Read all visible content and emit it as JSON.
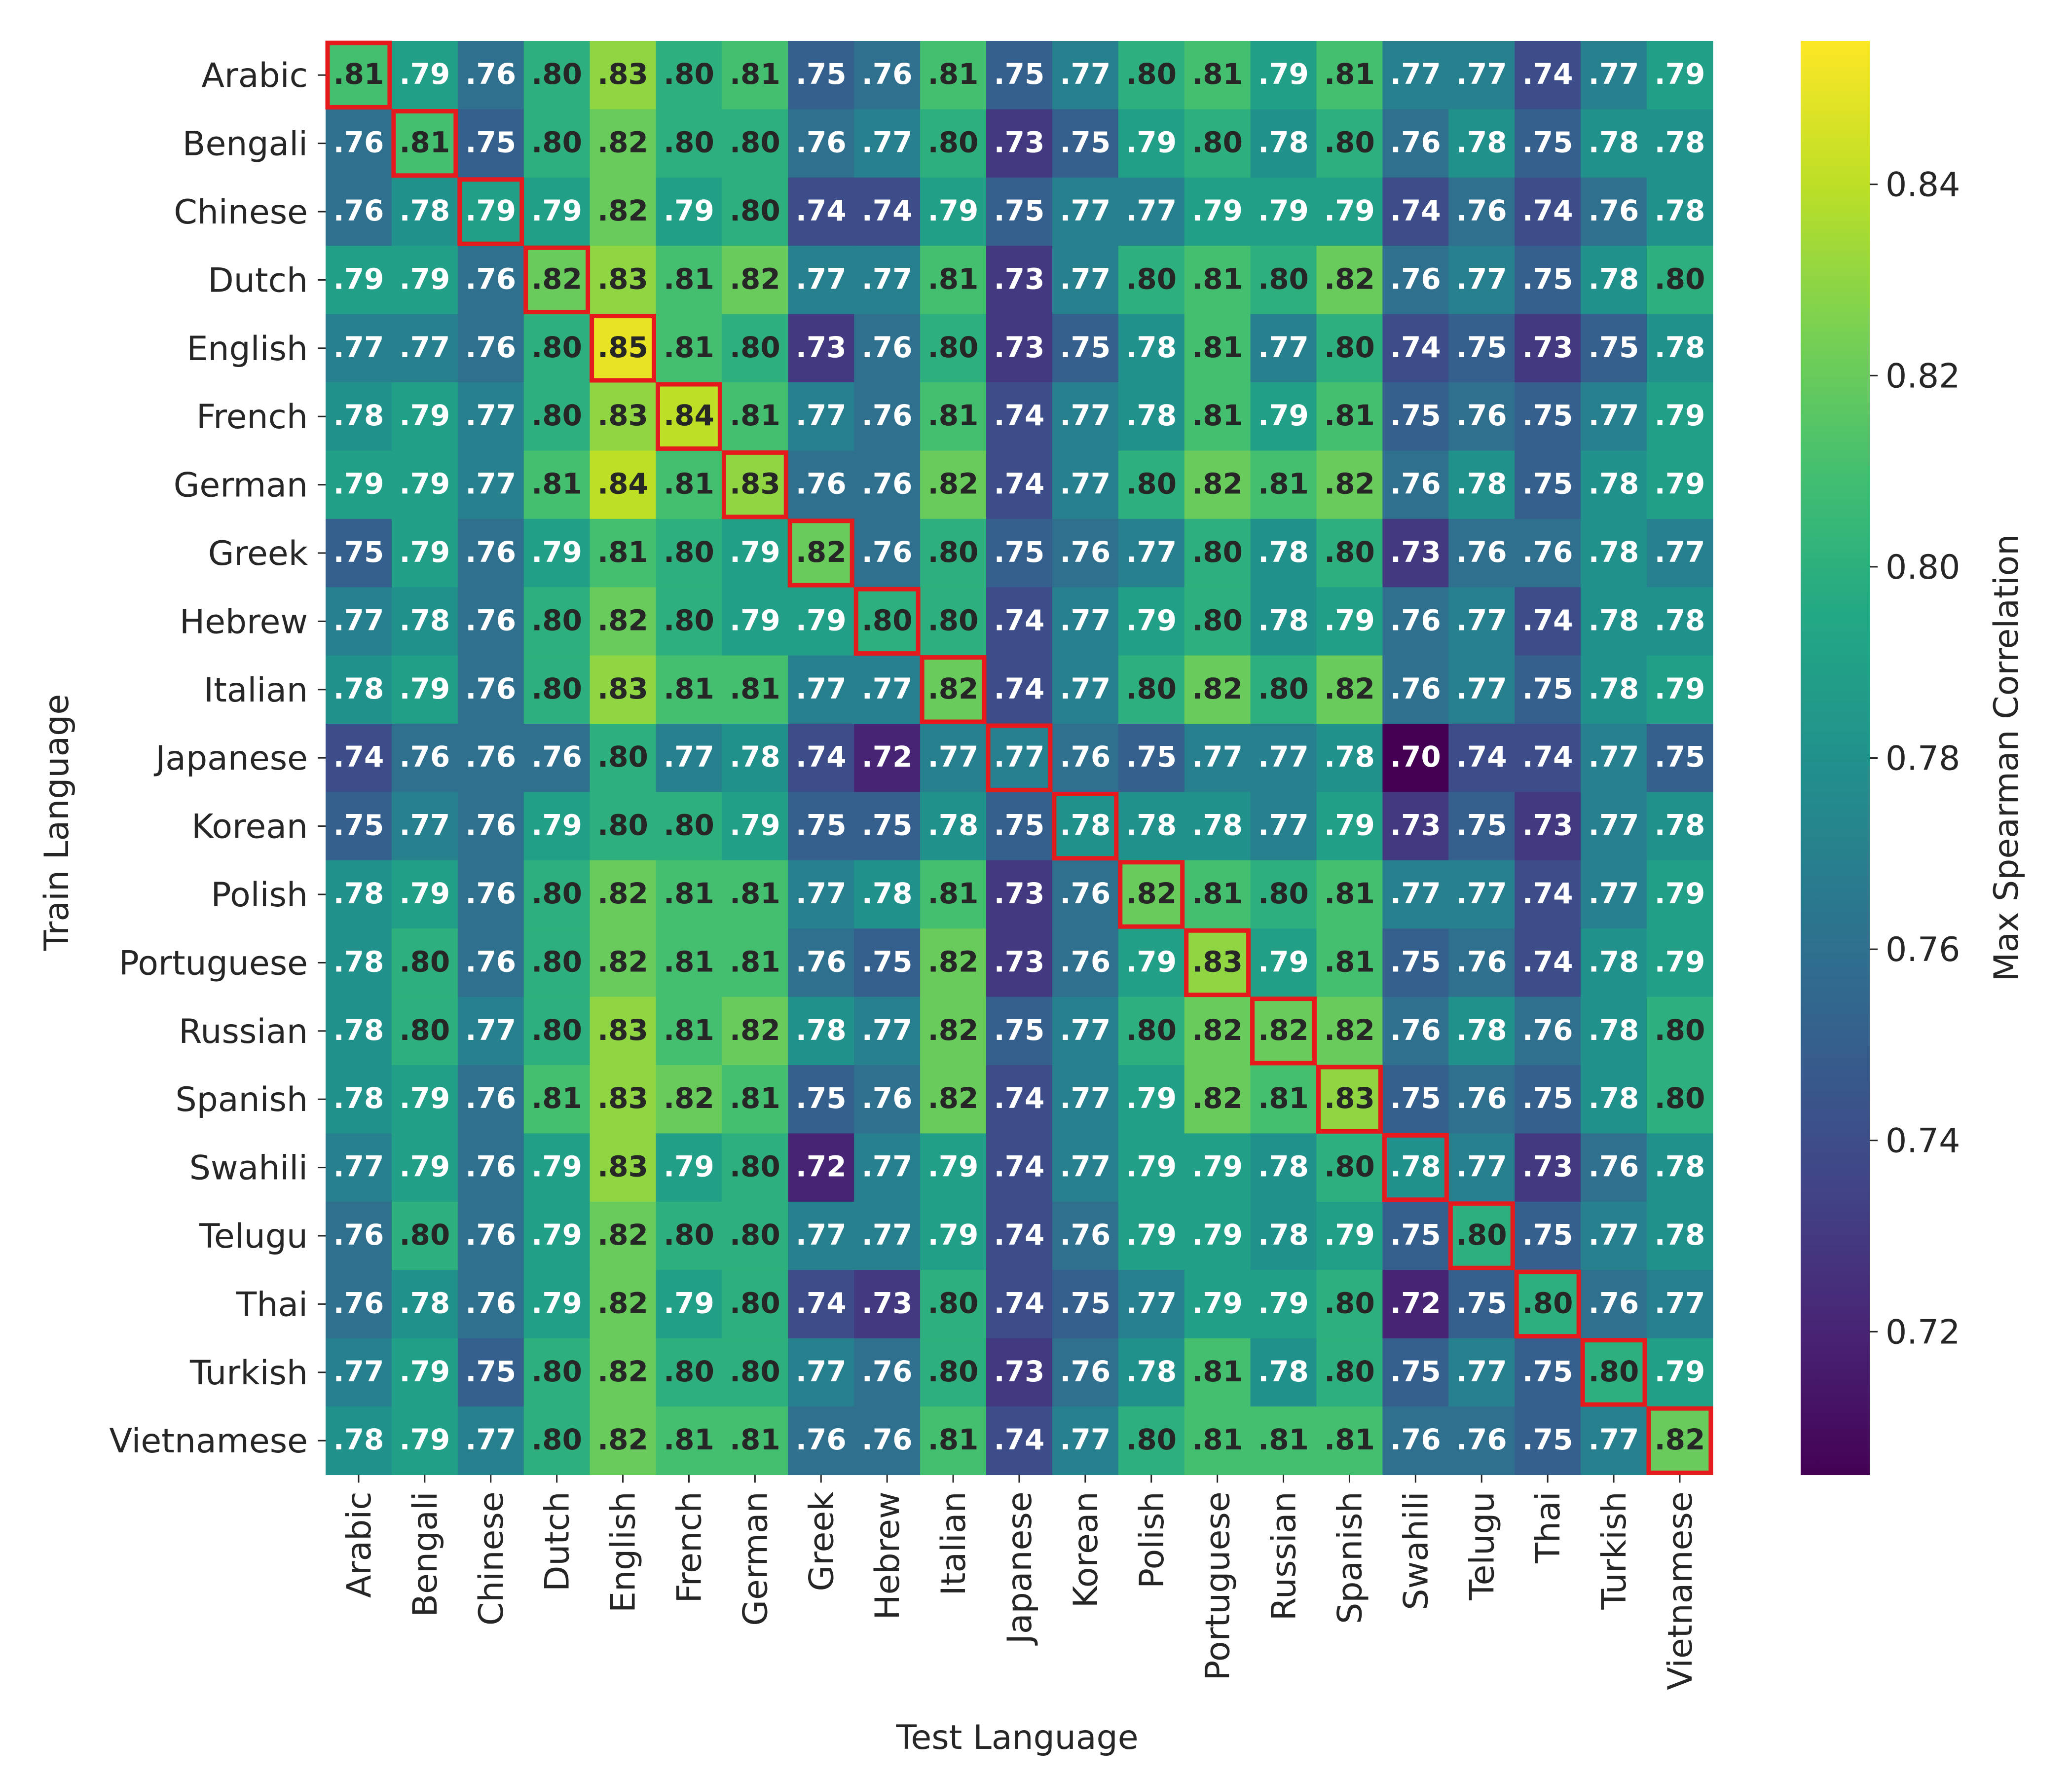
{
  "chart_data": {
    "type": "heatmap",
    "xlabel": "Test Language",
    "ylabel": "Train Language",
    "colorbar_label": "Max Spearman Correlation",
    "colormap": "viridis",
    "vmin": 0.705,
    "vmax": 0.855,
    "colorbar_ticks": [
      "0.72",
      "0.74",
      "0.76",
      "0.78",
      "0.80",
      "0.82",
      "0.84"
    ],
    "highlight_color": "#e41a1c",
    "highlight": "diagonal",
    "rows": [
      "Arabic",
      "Bengali",
      "Chinese",
      "Dutch",
      "English",
      "French",
      "German",
      "Greek",
      "Hebrew",
      "Italian",
      "Japanese",
      "Korean",
      "Polish",
      "Portuguese",
      "Russian",
      "Spanish",
      "Swahili",
      "Telugu",
      "Thai",
      "Turkish",
      "Vietnamese"
    ],
    "columns": [
      "Arabic",
      "Bengali",
      "Chinese",
      "Dutch",
      "English",
      "French",
      "German",
      "Greek",
      "Hebrew",
      "Italian",
      "Japanese",
      "Korean",
      "Polish",
      "Portuguese",
      "Russian",
      "Spanish",
      "Swahili",
      "Telugu",
      "Thai",
      "Turkish",
      "Vietnamese"
    ],
    "values": [
      [
        0.81,
        0.79,
        0.76,
        0.8,
        0.83,
        0.8,
        0.81,
        0.75,
        0.76,
        0.81,
        0.75,
        0.77,
        0.8,
        0.81,
        0.79,
        0.81,
        0.77,
        0.77,
        0.74,
        0.77,
        0.79
      ],
      [
        0.76,
        0.81,
        0.75,
        0.8,
        0.82,
        0.8,
        0.8,
        0.76,
        0.77,
        0.8,
        0.73,
        0.75,
        0.79,
        0.8,
        0.78,
        0.8,
        0.76,
        0.78,
        0.75,
        0.78,
        0.78
      ],
      [
        0.76,
        0.78,
        0.79,
        0.79,
        0.82,
        0.79,
        0.8,
        0.74,
        0.74,
        0.79,
        0.75,
        0.77,
        0.77,
        0.79,
        0.79,
        0.79,
        0.74,
        0.76,
        0.74,
        0.76,
        0.78
      ],
      [
        0.79,
        0.79,
        0.76,
        0.82,
        0.83,
        0.81,
        0.82,
        0.77,
        0.77,
        0.81,
        0.73,
        0.77,
        0.8,
        0.81,
        0.8,
        0.82,
        0.76,
        0.77,
        0.75,
        0.78,
        0.8
      ],
      [
        0.77,
        0.77,
        0.76,
        0.8,
        0.85,
        0.81,
        0.8,
        0.73,
        0.76,
        0.8,
        0.73,
        0.75,
        0.78,
        0.81,
        0.77,
        0.8,
        0.74,
        0.75,
        0.73,
        0.75,
        0.78
      ],
      [
        0.78,
        0.79,
        0.77,
        0.8,
        0.83,
        0.84,
        0.81,
        0.77,
        0.76,
        0.81,
        0.74,
        0.77,
        0.78,
        0.81,
        0.79,
        0.81,
        0.75,
        0.76,
        0.75,
        0.77,
        0.79
      ],
      [
        0.79,
        0.79,
        0.77,
        0.81,
        0.84,
        0.81,
        0.83,
        0.76,
        0.76,
        0.82,
        0.74,
        0.77,
        0.8,
        0.82,
        0.81,
        0.82,
        0.76,
        0.78,
        0.75,
        0.78,
        0.79
      ],
      [
        0.75,
        0.79,
        0.76,
        0.79,
        0.81,
        0.8,
        0.79,
        0.82,
        0.76,
        0.8,
        0.75,
        0.76,
        0.77,
        0.8,
        0.78,
        0.8,
        0.73,
        0.76,
        0.76,
        0.78,
        0.77
      ],
      [
        0.77,
        0.78,
        0.76,
        0.8,
        0.82,
        0.8,
        0.79,
        0.79,
        0.8,
        0.8,
        0.74,
        0.77,
        0.79,
        0.8,
        0.78,
        0.79,
        0.76,
        0.77,
        0.74,
        0.78,
        0.78
      ],
      [
        0.78,
        0.79,
        0.76,
        0.8,
        0.83,
        0.81,
        0.81,
        0.77,
        0.77,
        0.82,
        0.74,
        0.77,
        0.8,
        0.82,
        0.8,
        0.82,
        0.76,
        0.77,
        0.75,
        0.78,
        0.79
      ],
      [
        0.74,
        0.76,
        0.76,
        0.76,
        0.8,
        0.77,
        0.78,
        0.74,
        0.72,
        0.77,
        0.77,
        0.76,
        0.75,
        0.77,
        0.77,
        0.78,
        0.7,
        0.74,
        0.74,
        0.77,
        0.75
      ],
      [
        0.75,
        0.77,
        0.76,
        0.79,
        0.8,
        0.8,
        0.79,
        0.75,
        0.75,
        0.78,
        0.75,
        0.78,
        0.78,
        0.78,
        0.77,
        0.79,
        0.73,
        0.75,
        0.73,
        0.77,
        0.78
      ],
      [
        0.78,
        0.79,
        0.76,
        0.8,
        0.82,
        0.81,
        0.81,
        0.77,
        0.78,
        0.81,
        0.73,
        0.76,
        0.82,
        0.81,
        0.8,
        0.81,
        0.77,
        0.77,
        0.74,
        0.77,
        0.79
      ],
      [
        0.78,
        0.8,
        0.76,
        0.8,
        0.82,
        0.81,
        0.81,
        0.76,
        0.75,
        0.82,
        0.73,
        0.76,
        0.79,
        0.83,
        0.79,
        0.81,
        0.75,
        0.76,
        0.74,
        0.78,
        0.79
      ],
      [
        0.78,
        0.8,
        0.77,
        0.8,
        0.83,
        0.81,
        0.82,
        0.78,
        0.77,
        0.82,
        0.75,
        0.77,
        0.8,
        0.82,
        0.82,
        0.82,
        0.76,
        0.78,
        0.76,
        0.78,
        0.8
      ],
      [
        0.78,
        0.79,
        0.76,
        0.81,
        0.83,
        0.82,
        0.81,
        0.75,
        0.76,
        0.82,
        0.74,
        0.77,
        0.79,
        0.82,
        0.81,
        0.83,
        0.75,
        0.76,
        0.75,
        0.78,
        0.8
      ],
      [
        0.77,
        0.79,
        0.76,
        0.79,
        0.83,
        0.79,
        0.8,
        0.72,
        0.77,
        0.79,
        0.74,
        0.77,
        0.79,
        0.79,
        0.78,
        0.8,
        0.78,
        0.77,
        0.73,
        0.76,
        0.78
      ],
      [
        0.76,
        0.8,
        0.76,
        0.79,
        0.82,
        0.8,
        0.8,
        0.77,
        0.77,
        0.79,
        0.74,
        0.76,
        0.79,
        0.79,
        0.78,
        0.79,
        0.75,
        0.8,
        0.75,
        0.77,
        0.78
      ],
      [
        0.76,
        0.78,
        0.76,
        0.79,
        0.82,
        0.79,
        0.8,
        0.74,
        0.73,
        0.8,
        0.74,
        0.75,
        0.77,
        0.79,
        0.79,
        0.8,
        0.72,
        0.75,
        0.8,
        0.76,
        0.77
      ],
      [
        0.77,
        0.79,
        0.75,
        0.8,
        0.82,
        0.8,
        0.8,
        0.77,
        0.76,
        0.8,
        0.73,
        0.76,
        0.78,
        0.81,
        0.78,
        0.8,
        0.75,
        0.77,
        0.75,
        0.8,
        0.79
      ],
      [
        0.78,
        0.79,
        0.77,
        0.8,
        0.82,
        0.81,
        0.81,
        0.76,
        0.76,
        0.81,
        0.74,
        0.77,
        0.8,
        0.81,
        0.81,
        0.81,
        0.76,
        0.76,
        0.75,
        0.77,
        0.82
      ]
    ]
  }
}
